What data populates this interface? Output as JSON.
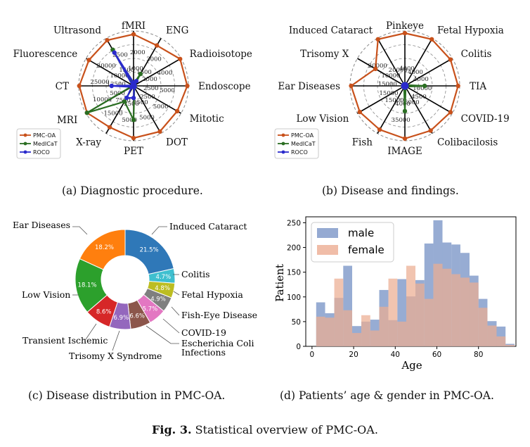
{
  "figure": {
    "label": "Fig. 3.",
    "text": "Statistical overview of PMC-OA."
  },
  "captions": {
    "a": "(a) Diagnostic procedure.",
    "b": "(b) Disease and findings.",
    "c": "(c) Disease distribution in PMC-OA.",
    "d": "(d) Patients’ age & gender in PMC-OA."
  },
  "chart_data": [
    {
      "type": "radar",
      "id": "diagnostic-procedure",
      "title": "Diagnostic procedure",
      "axes": [
        "fMRI",
        "ENG",
        "Radioisotope",
        "Endoscope",
        "Mitotic",
        "DOT",
        "PET",
        "X-ray",
        "MRI",
        "CT",
        "Fluorescence",
        "Ultrasond"
      ],
      "tick_labels": [
        [
          "1000",
          "2000"
        ],
        [
          "1500",
          "3000"
        ],
        [
          "2000",
          "4000"
        ],
        [
          "2500",
          "5000"
        ],
        [
          "2500",
          "5000"
        ],
        [
          "2500",
          "5000"
        ],
        [
          "2500",
          "5000"
        ],
        [
          "7500",
          "15000"
        ],
        [
          "5000",
          "10000"
        ],
        [
          "12500",
          "25000"
        ],
        [
          "10000",
          "20000"
        ],
        [
          "1500",
          "2500"
        ]
      ],
      "series": [
        {
          "name": "PMC-OA",
          "color": "#c8511b",
          "values": [
            0.94,
            0.85,
            0.98,
            0.98,
            0.92,
            0.96,
            0.95,
            0.87,
            0.98,
            0.99,
            0.94,
            0.96
          ]
        },
        {
          "name": "MedICaT",
          "color": "#2a6e22",
          "values": [
            0.04,
            0.25,
            0.02,
            0.02,
            0.02,
            0.03,
            0.62,
            0.33,
            0.98,
            0.02,
            0.02,
            0.76
          ]
        },
        {
          "name": "ROCO",
          "color": "#2a2acc",
          "values": [
            0.06,
            0.1,
            0.02,
            0.02,
            0.02,
            0.03,
            0.22,
            0.25,
            0.04,
            0.4,
            0.02,
            0.7
          ]
        }
      ],
      "legend_position": "bottom-left"
    },
    {
      "type": "radar",
      "id": "disease-findings",
      "title": "Disease and findings",
      "axes": [
        "Pinkeye",
        "Fetal Hypoxia",
        "Colitis",
        "TIA",
        "COVID-19",
        "Colibacilosis",
        "IMAGE",
        "Fish",
        "Low Vision",
        "Ear Diseases",
        "Trisomy X",
        "Induced Cataract"
      ],
      "tick_labels": [
        [
          "4000"
        ],
        [
          "4000"
        ],
        [
          "4000"
        ],
        [
          "10000"
        ],
        [
          "4500"
        ],
        [
          "6000"
        ],
        [
          "4000",
          "35000"
        ],
        [
          "15000"
        ],
        [
          "15000"
        ],
        [
          "15000"
        ],
        [
          "10000",
          "20000"
        ],
        [
          "20000"
        ]
      ],
      "series": [
        {
          "name": "PMC-OA",
          "color": "#c8511b",
          "values": [
            0.96,
            0.98,
            0.96,
            0.97,
            0.96,
            0.94,
            0.96,
            0.92,
            0.95,
            0.98,
            0.62,
            0.98
          ]
        },
        {
          "name": "MedICaT",
          "color": "#2a6e22",
          "values": [
            0.03,
            0.03,
            0.03,
            0.36,
            0.03,
            0.03,
            0.46,
            0.03,
            0.03,
            0.03,
            0.03,
            0.03
          ]
        },
        {
          "name": "ROCO",
          "color": "#2a2acc",
          "values": [
            0.03,
            0.03,
            0.03,
            0.03,
            0.03,
            0.03,
            0.03,
            0.03,
            0.03,
            0.03,
            0.03,
            0.03
          ]
        }
      ],
      "legend_position": "bottom-left"
    },
    {
      "type": "pie",
      "id": "disease-distribution",
      "title": "Disease distribution in PMC-OA",
      "donut": true,
      "slices": [
        {
          "label": "Induced Cataract",
          "value": 21.5,
          "text": "21.5%",
          "color": "#2f78b8"
        },
        {
          "label": "Colitis",
          "value": 4.7,
          "text": "4.7%",
          "color": "#3fbfcf"
        },
        {
          "label": "Fetal Hypoxia",
          "value": 4.8,
          "text": "4.8%",
          "color": "#bcbd22"
        },
        {
          "label": "Fish-Eye Disease",
          "value": 4.9,
          "text": "4.9%",
          "color": "#7f7f7f"
        },
        {
          "label": "COVID-19",
          "value": 5.7,
          "text": "5.7%",
          "color": "#e377c2"
        },
        {
          "label": "Escherichia Coli Infections",
          "value": 6.6,
          "text": "6.6%",
          "color": "#8c564b"
        },
        {
          "label": "Trisomy X Syndrome",
          "value": 6.9,
          "text": "6.9%",
          "color": "#9467bd"
        },
        {
          "label": "Transient Ischemic",
          "value": 8.6,
          "text": "8.6%",
          "color": "#d62728"
        },
        {
          "label": "Low Vision",
          "value": 18.1,
          "text": "18.1%",
          "color": "#2ca02c"
        },
        {
          "label": "Ear Diseases",
          "value": 18.2,
          "text": "18.2%",
          "color": "#ff7f0e"
        }
      ],
      "outer_labels": {
        "ear": "Ear Diseases",
        "induced": "Induced Cataract",
        "colitis": "Colitis",
        "fetal": "Fetal Hypoxia",
        "fish": "Fish-Eye Disease",
        "covid": "COVID-19",
        "ecoli_line1": "Escherichia Coli",
        "ecoli_line2": "Infections",
        "trisomy": "Trisomy X Syndrome",
        "transient": "Transient Ischemic",
        "lowvision": "Low Vision"
      }
    },
    {
      "type": "histogram",
      "id": "age-gender",
      "title": "Patients’ age & gender in PMC-OA",
      "xlabel": "Age",
      "ylabel": "Patient",
      "xlim": [
        -3,
        98
      ],
      "ylim": [
        0,
        262
      ],
      "xticks": [
        0,
        20,
        40,
        60,
        80
      ],
      "yticks": [
        0,
        50,
        100,
        150,
        200,
        250
      ],
      "bin_edges": [
        2,
        6.3,
        10.7,
        15,
        19.3,
        23.7,
        28,
        32.3,
        36.7,
        41,
        45.3,
        49.7,
        54,
        58.3,
        62.7,
        67,
        71.3,
        75.7,
        80,
        84.3,
        88.7,
        93,
        97.3
      ],
      "series": [
        {
          "name": "male",
          "color": "#7a95c7",
          "values": [
            89,
            67,
            98,
            163,
            41,
            50,
            54,
            114,
            53,
            136,
            101,
            134,
            208,
            255,
            210,
            206,
            189,
            143,
            96,
            51,
            40,
            5
          ]
        },
        {
          "name": "female",
          "color": "#ecad92",
          "values": [
            60,
            58,
            137,
            73,
            27,
            63,
            32,
            80,
            137,
            50,
            163,
            127,
            96,
            167,
            157,
            146,
            139,
            129,
            78,
            42,
            20,
            3
          ]
        }
      ],
      "legend_position": "upper-left"
    }
  ]
}
